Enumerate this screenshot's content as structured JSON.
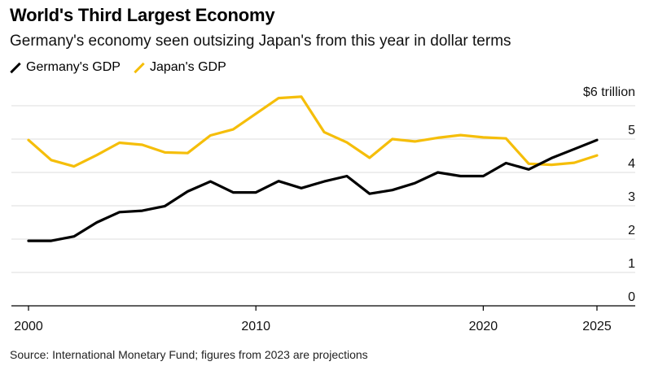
{
  "header": {
    "title": "World's Third Largest Economy",
    "subtitle": "Germany's economy seen outsizing Japan's from this year in dollar terms"
  },
  "footer": {
    "source": "Source: International Monetary Fund; figures from 2023 are projections"
  },
  "chart_data": {
    "type": "line",
    "title": "World's Third Largest Economy",
    "subtitle": "Germany's economy seen outsizing Japan's from this year in dollar terms",
    "xlabel": "",
    "ylabel": "",
    "y_unit_label": "$6 trillion",
    "x": [
      2000,
      2001,
      2002,
      2003,
      2004,
      2005,
      2006,
      2007,
      2008,
      2009,
      2010,
      2011,
      2012,
      2013,
      2014,
      2015,
      2016,
      2017,
      2018,
      2019,
      2020,
      2021,
      2022,
      2023,
      2024,
      2025
    ],
    "series": [
      {
        "name": "Germany's GDP",
        "color": "#000000",
        "values": [
          1.95,
          1.95,
          2.08,
          2.5,
          2.81,
          2.85,
          2.99,
          3.43,
          3.73,
          3.4,
          3.4,
          3.74,
          3.53,
          3.73,
          3.89,
          3.36,
          3.47,
          3.68,
          4.0,
          3.89,
          3.89,
          4.28,
          4.09,
          4.43,
          4.7,
          4.97
        ]
      },
      {
        "name": "Japan's GDP",
        "color": "#F5BE0A",
        "values": [
          4.97,
          4.37,
          4.18,
          4.52,
          4.89,
          4.83,
          4.6,
          4.58,
          5.11,
          5.29,
          5.76,
          6.23,
          6.27,
          5.21,
          4.9,
          4.44,
          5.0,
          4.93,
          5.04,
          5.12,
          5.05,
          5.02,
          4.26,
          4.23,
          4.29,
          4.51
        ]
      }
    ],
    "xticks": [
      2000,
      2010,
      2020,
      2025
    ],
    "yticks": [
      0,
      1,
      2,
      3,
      4,
      5
    ],
    "xlim": [
      2000,
      2025
    ],
    "ylim": [
      0,
      6
    ],
    "grid": "horizontal",
    "legend_position": "top-left"
  }
}
